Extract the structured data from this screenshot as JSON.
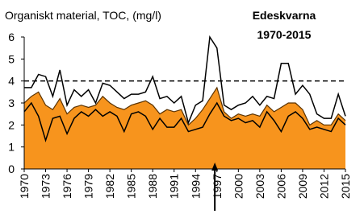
{
  "chart_data": {
    "type": "line",
    "title": "Organiskt material, TOC, (mg/l)",
    "annotation": [
      "Edeskvarna",
      "1970-2015"
    ],
    "x": [
      1970,
      1971,
      1972,
      1973,
      1974,
      1975,
      1976,
      1977,
      1978,
      1979,
      1980,
      1981,
      1982,
      1983,
      1984,
      1985,
      1986,
      1987,
      1988,
      1989,
      1990,
      1991,
      1992,
      1993,
      1994,
      1995,
      1996,
      1997,
      1998,
      1999,
      2000,
      2001,
      2002,
      2003,
      2004,
      2005,
      2006,
      2007,
      2008,
      2009,
      2010,
      2011,
      2012,
      2013,
      2014,
      2015
    ],
    "series": [
      {
        "color": "#000000",
        "fill": false,
        "values": [
          3.7,
          3.7,
          4.3,
          4.2,
          3.3,
          4.5,
          2.9,
          3.6,
          3.3,
          3.6,
          3.0,
          3.9,
          3.8,
          3.5,
          3.2,
          3.4,
          3.4,
          3.5,
          4.2,
          3.2,
          3.3,
          3.0,
          3.3,
          2.1,
          2.9,
          3.1,
          6.0,
          5.5,
          2.9,
          2.7,
          2.9,
          3.0,
          3.3,
          2.9,
          3.3,
          3.2,
          4.8,
          4.8,
          3.4,
          3.8,
          3.4,
          2.5,
          2.3,
          2.3,
          3.4,
          2.4
        ]
      },
      {
        "color": "#f7941d",
        "fill": true,
        "values": [
          3.0,
          3.3,
          3.5,
          2.9,
          2.7,
          3.2,
          2.5,
          2.8,
          2.9,
          2.8,
          2.9,
          3.3,
          3.0,
          2.8,
          2.7,
          2.9,
          3.0,
          3.1,
          2.9,
          2.5,
          2.7,
          2.6,
          2.7,
          2.0,
          2.3,
          2.7,
          3.2,
          3.7,
          2.6,
          2.3,
          2.5,
          2.4,
          2.5,
          2.4,
          2.9,
          2.6,
          2.8,
          3.0,
          3.0,
          2.7,
          2.0,
          2.2,
          2.0,
          2.0,
          2.5,
          2.2
        ]
      },
      {
        "color": "#000000",
        "fill": false,
        "values": [
          2.6,
          3.0,
          2.4,
          1.3,
          2.3,
          2.4,
          1.6,
          2.3,
          2.6,
          2.4,
          2.7,
          2.4,
          2.6,
          2.4,
          1.7,
          2.5,
          2.6,
          2.4,
          1.8,
          2.3,
          1.9,
          1.9,
          2.3,
          1.7,
          1.8,
          1.9,
          2.5,
          3.0,
          2.4,
          2.2,
          2.3,
          2.1,
          2.2,
          1.9,
          2.6,
          2.2,
          1.7,
          2.4,
          2.6,
          2.3,
          1.8,
          1.9,
          1.8,
          1.7,
          2.3,
          2.0
        ]
      }
    ],
    "reference_line": 4,
    "arrow_x": 1996.7,
    "xlim": [
      1970,
      2015
    ],
    "xticks": [
      1970,
      1973,
      1976,
      1979,
      1982,
      1985,
      1988,
      1991,
      1994,
      1997,
      2000,
      2003,
      2006,
      2009,
      2012,
      2015
    ],
    "ylim": [
      0,
      6
    ],
    "yticks": [
      0,
      1,
      2,
      3,
      4,
      5,
      6
    ]
  }
}
